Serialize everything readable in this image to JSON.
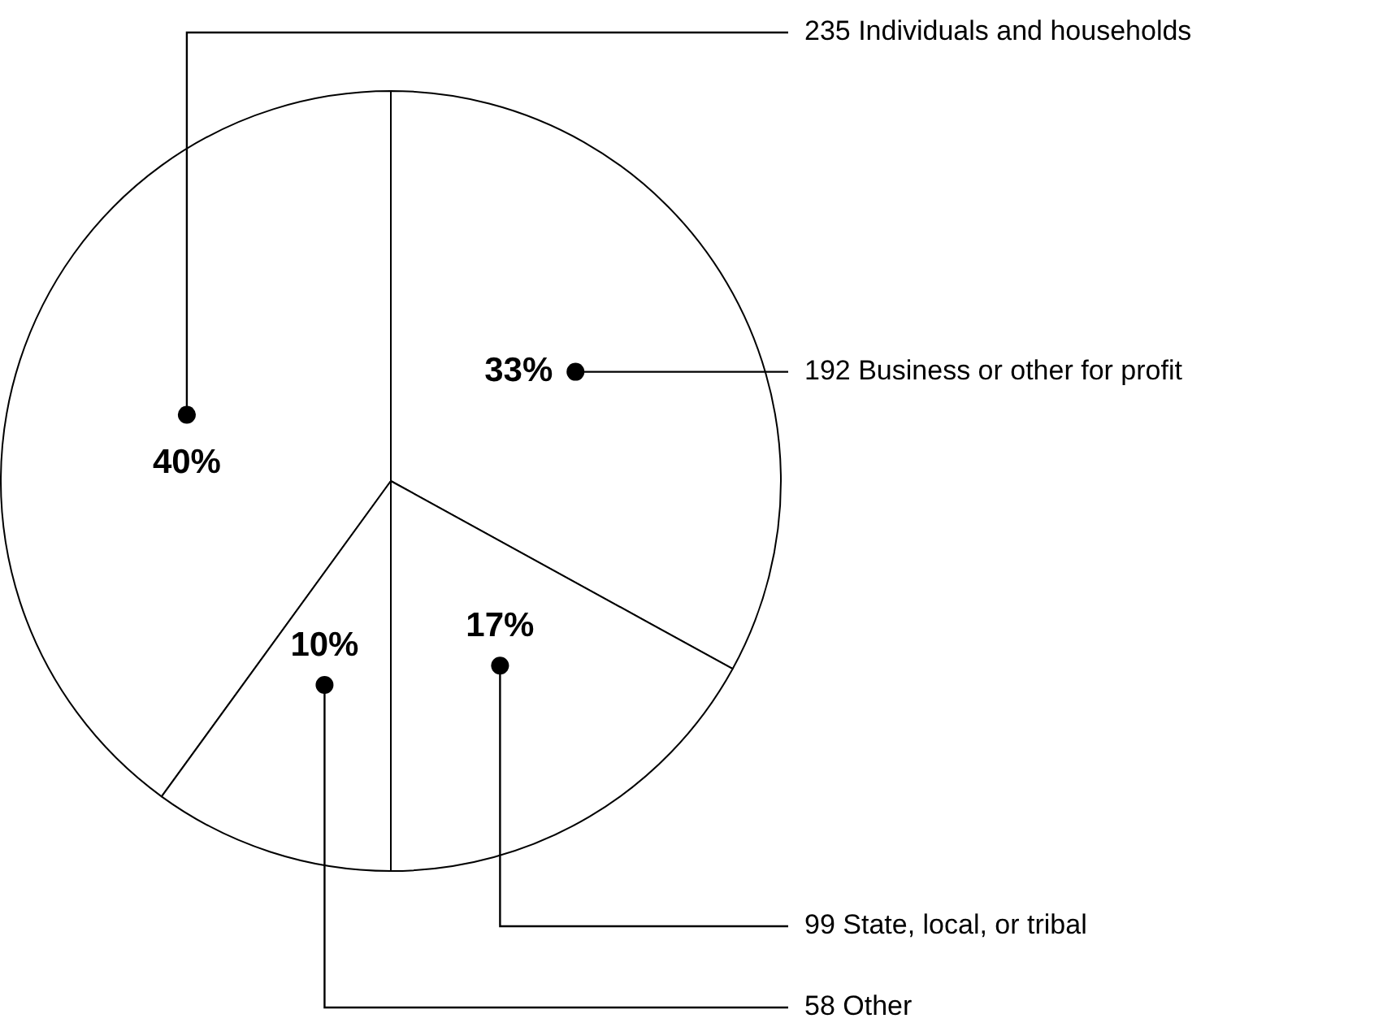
{
  "chart_data": {
    "type": "pie",
    "categories": [
      "235 Individuals and households",
      "192 Business or other for profit",
      "99 State, local, or tribal",
      "58 Other"
    ],
    "values": [
      40,
      33,
      17,
      10
    ],
    "colors": [
      "#ffffff",
      "#ffffff",
      "#ffffff",
      "#ffffff"
    ],
    "value_labels": [
      "40%",
      "33%",
      "17%",
      "10%"
    ],
    "legend": false
  }
}
